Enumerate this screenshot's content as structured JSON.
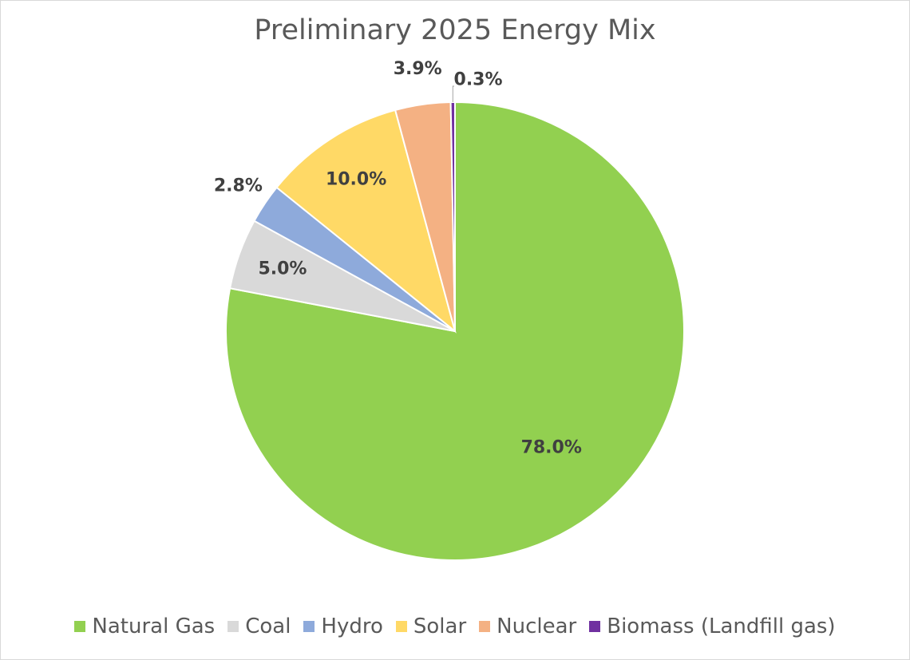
{
  "chart_data": {
    "type": "pie",
    "title": "Preliminary 2025 Energy Mix",
    "categories": [
      "Natural Gas",
      "Coal",
      "Hydro",
      "Solar",
      "Nuclear",
      "Biomass (Landfill gas)"
    ],
    "values": [
      78.0,
      5.0,
      2.8,
      10.0,
      3.9,
      0.3
    ],
    "labels": [
      "78.0%",
      "5.0%",
      "2.8%",
      "10.0%",
      "3.9%",
      "0.3%"
    ],
    "colors": [
      "#92d050",
      "#d9d9d9",
      "#8eaadb",
      "#ffd966",
      "#f4b183",
      "#7030a0"
    ],
    "start_angle_deg": 0,
    "direction": "clockwise",
    "legend_position": "bottom"
  }
}
